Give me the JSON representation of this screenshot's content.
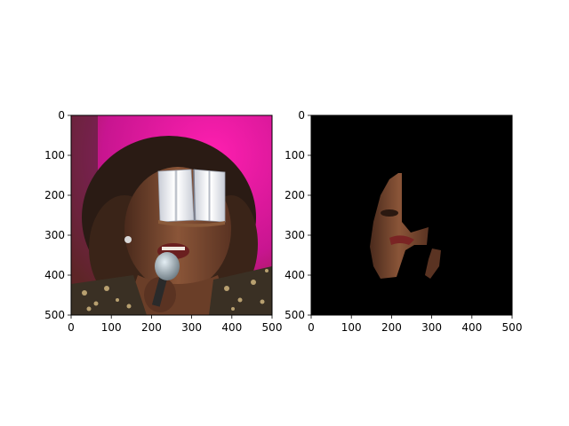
{
  "figure": {
    "background": "#ffffff",
    "panels": [
      {
        "name": "left",
        "content": "photo of singer with microphone and open-book sticker over eyes",
        "x_ticks": [
          "0",
          "100",
          "200",
          "300",
          "400",
          "500"
        ],
        "y_ticks": [
          "0",
          "100",
          "200",
          "300",
          "400",
          "500"
        ],
        "x_range": [
          0,
          500
        ],
        "y_range": [
          0,
          500
        ],
        "y_inverted": true,
        "colors": {
          "background": "#d4169b",
          "hair": "#2a1b14",
          "skin": "#7a4a32",
          "jacket": "#3a3024",
          "sparkle": "#b8a070",
          "mic": "#a8b4bc",
          "book": "#e8ecf2"
        }
      },
      {
        "name": "right",
        "content": "segmentation of face region on black background",
        "x_ticks": [
          "0",
          "100",
          "200",
          "300",
          "400",
          "500"
        ],
        "y_ticks": [
          "0",
          "100",
          "200",
          "300",
          "400",
          "500"
        ],
        "x_range": [
          0,
          500
        ],
        "y_range": [
          0,
          500
        ],
        "y_inverted": true,
        "colors": {
          "background": "#000000",
          "skin": "#7a4a32"
        }
      }
    ]
  }
}
